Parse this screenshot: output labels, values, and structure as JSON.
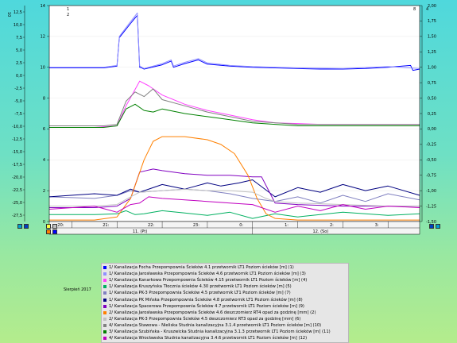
{
  "period_label": "Sierpień 2017",
  "axis_badges": {
    "left1": "1",
    "left2": "2",
    "left_outer": "10",
    "right": "8",
    "right_outer": "4"
  },
  "chart_data": {
    "type": "line",
    "y_left_outer": {
      "ticks": [
        "12,5",
        "10,0",
        "7,5",
        "5,0",
        "2,5",
        "0,0",
        "-2,5",
        "-5,0",
        "-7,5",
        "-10,0",
        "-12,5",
        "-15,0",
        "-17,5",
        "-20,0",
        "-22,5",
        "-25,0",
        "-27,5"
      ],
      "ylim": [
        -28.75,
        13.75
      ]
    },
    "y_left_inner": {
      "ticks": [
        "14",
        "12",
        "10",
        "8",
        "6",
        "4",
        "2",
        "0"
      ],
      "ylim": [
        0,
        14
      ]
    },
    "y_right": {
      "ticks": [
        "2,00",
        "1,75",
        "1,50",
        "1,25",
        "1,00",
        "0,75",
        "0,50",
        "0,25",
        "0,00",
        "-0,25",
        "-0,50",
        "-0,75",
        "-1,00",
        "-1,25",
        "-1,50"
      ],
      "ylim": [
        -1.5,
        2.0
      ]
    },
    "x_hours": [
      "20:",
      "21:",
      "22:",
      "23:",
      "0:",
      "1:",
      "2:",
      "3:"
    ],
    "x_days": [
      "11. (Pt)",
      "12. (So)"
    ],
    "xlim": [
      19.5,
      27.7
    ],
    "series": [
      {
        "name": "1/ Kanalizacja Focha Przepompownia Ścieków 4.1 przetwornik LT1 Poziom ścieków [m] (1)",
        "color": "#0000ff",
        "axis": "right",
        "x": [
          19.5,
          20.7,
          21.0,
          21.05,
          21.3,
          21.4,
          21.45,
          21.5,
          21.55,
          21.6,
          22.0,
          22.2,
          22.25,
          22.5,
          22.8,
          23.0,
          23.5,
          24.0,
          24.5,
          25.0,
          25.5,
          26.0,
          26.5,
          27.0,
          27.5,
          27.55,
          27.7
        ],
        "y": [
          0.99,
          0.99,
          1.02,
          1.48,
          1.71,
          1.8,
          1.84,
          1.0,
          0.99,
          0.97,
          1.04,
          1.1,
          1.0,
          1.06,
          1.12,
          1.05,
          1.02,
          1.0,
          0.99,
          0.98,
          0.97,
          0.97,
          0.98,
          1.0,
          1.03,
          0.95,
          0.97
        ]
      },
      {
        "name": "1/ Kanalizacja Jarosławska Przepompownia Ścieków 4.6 przetwornik LT1 Poziom ścieków [m] (3)",
        "color": "#9090ff",
        "axis": "right",
        "x": [
          19.5,
          20.7,
          21.0,
          21.05,
          21.3,
          21.45,
          21.5,
          21.6,
          22.0,
          22.2,
          22.25,
          22.5,
          22.8,
          23.0,
          23.5,
          24.0,
          25.0,
          26.0,
          27.0,
          27.7
        ],
        "y": [
          1.0,
          1.0,
          1.03,
          1.5,
          1.74,
          1.88,
          1.02,
          0.98,
          1.06,
          1.12,
          1.02,
          1.08,
          1.14,
          1.07,
          1.03,
          1.01,
          0.99,
          0.98,
          1.01,
          0.98
        ]
      },
      {
        "name": "1/ Kanalizacja Kanarkowa Przepompownia Ścieków 4.15 przetwornik LT1 Poziom ścieków [m] (4)",
        "color": "#ff40ff",
        "axis": "inner",
        "x": [
          19.5,
          20.5,
          21.0,
          21.2,
          21.5,
          21.7,
          22.0,
          22.5,
          23.0,
          23.5,
          24.0,
          24.5,
          25.0,
          25.5,
          26.0,
          26.5,
          27.0,
          27.7
        ],
        "y": [
          6.1,
          6.1,
          6.2,
          7.5,
          9.1,
          8.8,
          8.2,
          7.6,
          7.2,
          6.9,
          6.6,
          6.4,
          6.35,
          6.3,
          6.3,
          6.3,
          6.3,
          6.3
        ]
      },
      {
        "name": "1/ Kanalizacja Kruszyńska Tłocznia ścieków 4.30 przetwornik LT1 Poziom ścieków [m] (5)",
        "color": "#00b060",
        "axis": "inner",
        "x": [
          19.5,
          20.5,
          21.0,
          21.2,
          21.4,
          21.6,
          21.8,
          22.0,
          22.5,
          23.0,
          23.5,
          24.0,
          24.5,
          25.0,
          26.0,
          27.0,
          27.7
        ],
        "y": [
          0.45,
          0.45,
          0.5,
          0.7,
          0.45,
          0.5,
          0.6,
          0.7,
          0.55,
          0.4,
          0.6,
          0.2,
          0.5,
          0.3,
          0.6,
          0.4,
          0.5
        ]
      },
      {
        "name": "1/ Kanalizacja PK-3 Przepompownia Ścieków 4.5 przetwornik LT1 Poziom ścieków [m] (7)",
        "color": "#8080c0",
        "axis": "inner",
        "x": [
          19.5,
          20.5,
          21.0,
          21.3,
          21.5,
          22.0,
          22.5,
          23.0,
          23.5,
          24.0,
          24.5,
          25.0,
          25.5,
          26.0,
          26.5,
          27.0,
          27.7
        ],
        "y": [
          1.6,
          1.5,
          1.7,
          2.0,
          1.9,
          2.0,
          2.1,
          2.0,
          1.8,
          1.5,
          1.3,
          1.6,
          1.2,
          1.7,
          1.3,
          1.8,
          1.4
        ]
      },
      {
        "name": "1/ Kanalizacja PK Mińska Przepompownia Ścieków 4.8 przetwornik LT1 Poziom ścieków [m] (8)",
        "color": "#000080",
        "axis": "inner",
        "x": [
          19.5,
          20.5,
          21.0,
          21.3,
          21.5,
          22.0,
          22.5,
          23.0,
          23.3,
          23.7,
          24.0,
          24.5,
          25.0,
          25.5,
          26.0,
          26.5,
          27.0,
          27.7
        ],
        "y": [
          1.6,
          1.8,
          1.7,
          2.1,
          1.9,
          2.4,
          2.1,
          2.5,
          2.3,
          2.5,
          2.7,
          1.6,
          2.2,
          1.9,
          2.4,
          2.0,
          2.3,
          1.7
        ]
      },
      {
        "name": "1/ Kanalizacja Spacerowa Przepompownia Ścieków 4.7 przetwornik LT1 Poziom ścieków [m] (9)",
        "color": "#8000c0",
        "axis": "inner",
        "x": [
          19.5,
          20.5,
          21.0,
          21.3,
          21.5,
          21.8,
          22.0,
          22.5,
          23.0,
          23.5,
          24.0,
          24.2,
          24.5,
          25.0,
          26.0,
          27.0,
          27.7
        ],
        "y": [
          0.9,
          0.9,
          1.0,
          1.5,
          3.2,
          3.4,
          3.3,
          3.1,
          3.0,
          3.0,
          2.9,
          2.9,
          1.2,
          1.1,
          1.0,
          1.0,
          1.0
        ]
      },
      {
        "name": "2/ Kanalizacja Jarosławska Przepompownia Ścieków 4.6 deszczomierz RT4 opad za godzinę [mm] (2)",
        "color": "#ff8000",
        "axis": "inner",
        "x": [
          19.5,
          20.5,
          21.0,
          21.3,
          21.6,
          21.8,
          22.0,
          22.5,
          23.0,
          23.3,
          23.6,
          23.9,
          24.1,
          24.3,
          24.5,
          25.0,
          26.0,
          27.0,
          27.7
        ],
        "y": [
          0.1,
          0.1,
          0.3,
          1.5,
          4.0,
          5.2,
          5.5,
          5.5,
          5.3,
          5.0,
          4.4,
          3.0,
          1.5,
          0.5,
          0.2,
          0.1,
          0.1,
          0.1,
          0.1
        ]
      },
      {
        "name": "2/ Kanalizacja PK-3 Przepompownia Ścieków 4.5 deszczomierz RT3 opad za godzinę [mm] (6)",
        "color": "#c0c0c0",
        "axis": "inner",
        "x": [
          19.5,
          20.5,
          21.0,
          21.3,
          21.5,
          22.0,
          22.5,
          23.0,
          23.5,
          24.0,
          24.3,
          24.5,
          25.0,
          26.0,
          27.0,
          27.7
        ],
        "y": [
          1.0,
          1.0,
          1.1,
          1.6,
          1.9,
          2.0,
          2.1,
          2.0,
          2.0,
          1.9,
          1.5,
          1.3,
          1.2,
          1.1,
          1.0,
          1.0
        ]
      },
      {
        "name": "4/ Kanalizacja Stawowa - Nieliska Studnia kanalizacyjna 3.1.4 przetwornik LT1 Poziom ścieków [m] (10)",
        "color": "#808080",
        "axis": "inner",
        "x": [
          19.5,
          20.7,
          21.0,
          21.2,
          21.4,
          21.6,
          21.8,
          22.0,
          22.5,
          23.0,
          23.5,
          24.0,
          25.0,
          26.0,
          27.0,
          27.7
        ],
        "y": [
          6.2,
          6.2,
          6.3,
          7.8,
          8.4,
          8.1,
          8.6,
          7.9,
          7.5,
          7.1,
          6.8,
          6.5,
          6.3,
          6.3,
          6.3,
          6.3
        ]
      },
      {
        "name": "3/ Kanalizacja Szubińska - Kruszwicka Studnia kanalizacyjna 3.1.3 przetwornik LT1 Poziom ścieków [m] (11)",
        "color": "#008000",
        "axis": "inner",
        "x": [
          19.5,
          20.7,
          21.0,
          21.2,
          21.4,
          21.6,
          21.8,
          22.0,
          22.5,
          23.0,
          23.5,
          24.0,
          24.5,
          25.0,
          26.0,
          27.0,
          27.7
        ],
        "y": [
          6.1,
          6.1,
          6.2,
          7.3,
          7.6,
          7.2,
          7.1,
          7.3,
          7.0,
          6.8,
          6.6,
          6.4,
          6.3,
          6.2,
          6.2,
          6.2,
          6.2
        ]
      },
      {
        "name": "4/ Kanalizacja Wrocławska Studnia kanalizacyjna 3.4.6 przetwornik LT1 Poziom ścieków [m] (12)",
        "color": "#c000c0",
        "axis": "inner",
        "x": [
          19.5,
          20.5,
          21.0,
          21.3,
          21.5,
          21.7,
          22.0,
          22.5,
          23.0,
          23.5,
          24.0,
          24.5,
          25.0,
          25.5,
          26.0,
          26.5,
          27.0,
          27.7
        ],
        "y": [
          0.8,
          1.0,
          0.6,
          1.1,
          1.2,
          1.6,
          1.5,
          1.4,
          1.3,
          1.2,
          1.1,
          0.6,
          1.0,
          0.7,
          1.1,
          0.8,
          1.0,
          0.9
        ]
      }
    ]
  }
}
